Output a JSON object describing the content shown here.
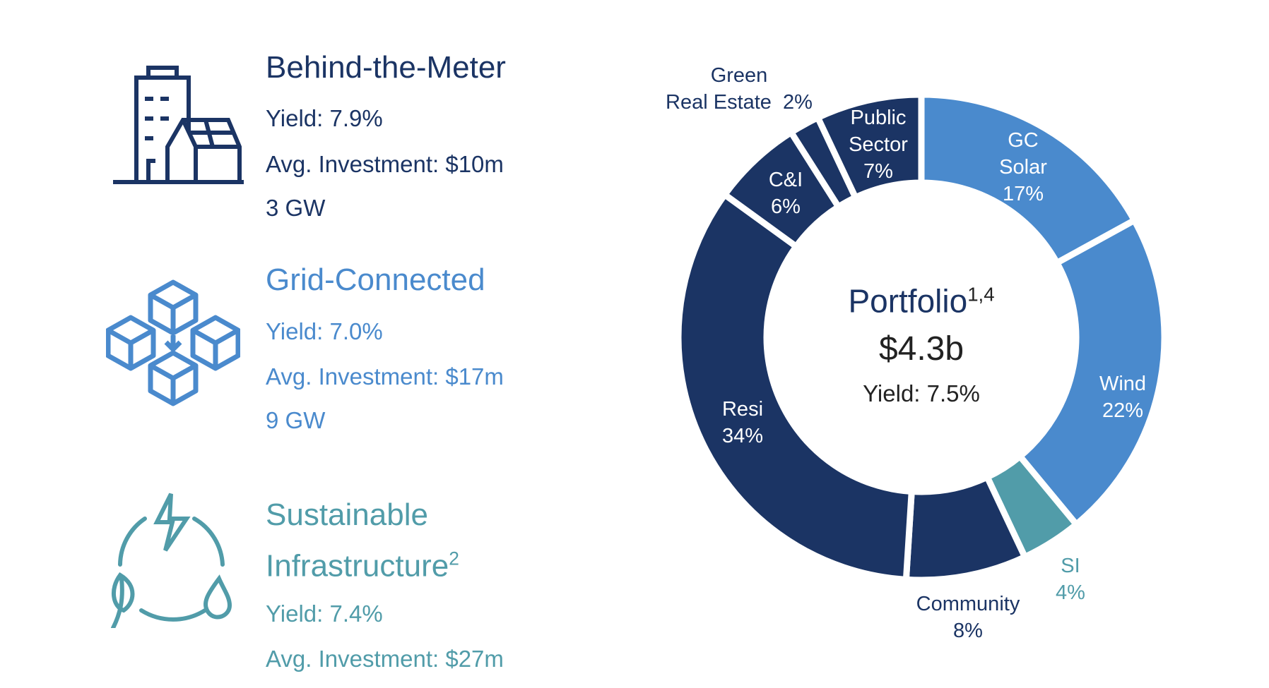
{
  "segments": [
    {
      "title": "Behind-the-Meter",
      "title_sup": "",
      "lines": [
        "Yield: 7.9%",
        "Avg. Investment: $10m",
        "3 GW"
      ],
      "color": "#1b3464",
      "icon": "building-with-solar-house-icon"
    },
    {
      "title": "Grid-Connected",
      "title_sup": "",
      "lines": [
        "Yield: 7.0%",
        "Avg. Investment: $17m",
        "9 GW"
      ],
      "color": "#4a8acd",
      "icon": "connected-cubes-icon"
    },
    {
      "title_line1": "Sustainable",
      "title": "Infrastructure",
      "title_sup": "2",
      "lines": [
        "Yield: 7.4%",
        "Avg. Investment: $27m"
      ],
      "color": "#519ca9",
      "icon": "energy-leaf-water-cycle-icon"
    }
  ],
  "chart_data": {
    "type": "pie",
    "donut": true,
    "center": {
      "title": "Portfolio",
      "title_sup": "1,4",
      "value": "$4.3b",
      "sub": "Yield: 7.5%"
    },
    "slices": [
      {
        "label": "GC Solar",
        "value": 17,
        "value_label": "17%",
        "color": "#4a8acd"
      },
      {
        "label": "Wind",
        "value": 22,
        "value_label": "22%",
        "color": "#4a8acd"
      },
      {
        "label": "SI",
        "value": 4,
        "value_label": "4%",
        "color": "#519ca9"
      },
      {
        "label": "Community",
        "value": 8,
        "value_label": "8%",
        "color": "#1b3464"
      },
      {
        "label": "Resi",
        "value": 34,
        "value_label": "34%",
        "color": "#1b3464"
      },
      {
        "label": "C&I",
        "value": 6,
        "value_label": "6%",
        "color": "#1b3464"
      },
      {
        "label": "Green Real Estate",
        "value": 2,
        "value_label": "2%",
        "color": "#1b3464"
      },
      {
        "label": "Public Sector",
        "value": 7,
        "value_label": "7%",
        "color": "#1b3464"
      }
    ],
    "labels": {
      "gc_solar": [
        "GC",
        "Solar",
        "17%"
      ],
      "wind": [
        "Wind",
        "22%"
      ],
      "si": [
        "SI",
        "4%"
      ],
      "community": [
        "Community",
        "8%"
      ],
      "resi": [
        "Resi",
        "34%"
      ],
      "ci": [
        "C&I",
        "6%"
      ],
      "green_re": [
        "Green",
        "Real Estate  2%"
      ],
      "public": [
        "Public",
        "Sector",
        "7%"
      ]
    }
  }
}
